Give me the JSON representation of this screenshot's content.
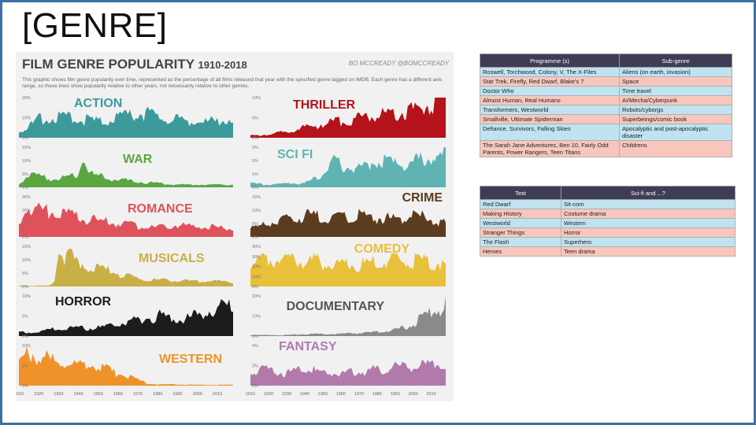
{
  "slide": {
    "title": "[GENRE]"
  },
  "infographic": {
    "title": "FILM GENRE POPULARITY",
    "years": "1910-2018",
    "credit": "BO MCCREADY  @BOMCCREADY",
    "subtitle": "This graphic shows film genre popularity over time, represented as the percentage of all films released that year with the specified genre tagged on IMDB. Each genre has a different axis range, so these lines show popularity relative to other years, not necessarily relative to other genres.",
    "x_ticks_left": [
      "1910",
      "1920",
      "1930",
      "1940",
      "1950",
      "1960",
      "1970",
      "1980",
      "1990",
      "2000",
      "2010"
    ],
    "x_ticks_right": [
      "1910",
      "1920",
      "1930",
      "1940",
      "1950",
      "1960",
      "1970",
      "1980",
      "1990",
      "2000",
      "2010"
    ]
  },
  "chart_data": [
    {
      "type": "area",
      "title": "ACTION",
      "color": "#3d9a9a",
      "yticks": [
        "20%",
        "10%",
        "0%"
      ],
      "ylim": [
        0,
        20
      ],
      "x": [
        1910,
        1920,
        1930,
        1940,
        1950,
        1960,
        1970,
        1980,
        1990,
        2000,
        2010,
        2018
      ],
      "values": [
        3,
        9,
        11,
        9,
        8,
        10,
        12,
        11,
        9,
        8,
        8,
        10
      ]
    },
    {
      "type": "area",
      "title": "THRILLER",
      "color": "#b5121b",
      "yticks": [
        "10%",
        "5%",
        "0%"
      ],
      "ylim": [
        0,
        10
      ],
      "x": [
        1910,
        1920,
        1930,
        1940,
        1950,
        1960,
        1970,
        1980,
        1990,
        2000,
        2010,
        2018
      ],
      "values": [
        0.5,
        0.8,
        1.5,
        2.5,
        3.5,
        4,
        5,
        5.5,
        6,
        7,
        8.5,
        10
      ]
    },
    {
      "type": "area",
      "title": "WAR",
      "color": "#5aa741",
      "yticks": [
        "15%",
        "10%",
        "5%",
        "0%"
      ],
      "ylim": [
        0,
        15
      ],
      "x": [
        1910,
        1915,
        1920,
        1930,
        1940,
        1943,
        1946,
        1950,
        1960,
        1970,
        1980,
        1990,
        2000,
        2010,
        2018
      ],
      "values": [
        1,
        5,
        4,
        3,
        5,
        13,
        5,
        4,
        3,
        2,
        1.5,
        1,
        1,
        1,
        1
      ]
    },
    {
      "type": "area",
      "title": "SCI FI",
      "color": "#5fb3b3",
      "yticks": [
        "3%",
        "2%",
        "1%",
        "0%"
      ],
      "ylim": [
        0,
        3
      ],
      "x": [
        1910,
        1920,
        1930,
        1940,
        1950,
        1955,
        1960,
        1970,
        1980,
        1990,
        2000,
        2010,
        2018
      ],
      "values": [
        0.3,
        0.2,
        0.3,
        0.3,
        1,
        2,
        1.6,
        1.5,
        2,
        1.8,
        1.9,
        2.2,
        2.4
      ]
    },
    {
      "type": "area",
      "title": "ROMANCE",
      "color": "#e0525b",
      "yticks": [
        "30%",
        "20%",
        "10%",
        "0%"
      ],
      "ylim": [
        0,
        30
      ],
      "x": [
        1910,
        1915,
        1920,
        1930,
        1940,
        1950,
        1960,
        1970,
        1980,
        1990,
        2000,
        2010,
        2018
      ],
      "values": [
        12,
        22,
        20,
        18,
        14,
        12,
        10,
        8,
        7,
        9,
        8,
        7,
        6
      ]
    },
    {
      "type": "area",
      "title": "CRIME",
      "color": "#5b3c1e",
      "yticks": [
        "15%",
        "10%",
        "5%",
        "0%"
      ],
      "ylim": [
        0,
        15
      ],
      "x": [
        1910,
        1920,
        1930,
        1940,
        1950,
        1960,
        1970,
        1980,
        1990,
        2000,
        2010,
        2018
      ],
      "values": [
        3,
        5,
        7,
        8,
        8,
        7,
        8,
        7,
        7,
        8,
        7,
        5
      ]
    },
    {
      "type": "area",
      "title": "MUSICALS",
      "color": "#c8b046",
      "yticks": [
        "15%",
        "10%",
        "5%",
        "0%"
      ],
      "ylim": [
        0,
        15
      ],
      "x": [
        1910,
        1925,
        1928,
        1930,
        1940,
        1950,
        1960,
        1970,
        1980,
        1990,
        2000,
        2010,
        2018
      ],
      "values": [
        0.3,
        0.3,
        2,
        13,
        9,
        7,
        5,
        3,
        2.5,
        2,
        2,
        2,
        1.5
      ]
    },
    {
      "type": "area",
      "title": "COMEDY",
      "color": "#e8c03a",
      "yticks": [
        "40%",
        "30%",
        "20%",
        "10%",
        "0%"
      ],
      "ylim": [
        0,
        40
      ],
      "x": [
        1910,
        1920,
        1930,
        1940,
        1950,
        1960,
        1970,
        1980,
        1990,
        2000,
        2010,
        2018
      ],
      "values": [
        20,
        28,
        25,
        26,
        24,
        22,
        21,
        24,
        26,
        25,
        24,
        22
      ]
    },
    {
      "type": "area",
      "title": "HORROR",
      "color": "#1c1c1c",
      "yticks": [
        "10%",
        "5%",
        "0%"
      ],
      "ylim": [
        0,
        10
      ],
      "x": [
        1910,
        1920,
        1930,
        1940,
        1950,
        1960,
        1970,
        1980,
        1990,
        2000,
        2010,
        2018
      ],
      "values": [
        1,
        1,
        2,
        2,
        2,
        3,
        4,
        5,
        4,
        5,
        7,
        8
      ]
    },
    {
      "type": "area",
      "title": "DOCUMENTARY",
      "color": "#8a8a8a",
      "yticks": [
        "20%",
        "10%",
        "0%"
      ],
      "ylim": [
        0,
        20
      ],
      "x": [
        1910,
        1920,
        1930,
        1940,
        1950,
        1960,
        1970,
        1980,
        1990,
        2000,
        2010,
        2018
      ],
      "values": [
        0.5,
        0.5,
        0.5,
        1,
        1,
        1,
        1.5,
        2,
        3,
        6,
        12,
        16
      ]
    },
    {
      "type": "area",
      "title": "WESTERN",
      "color": "#f0922a",
      "yticks": [
        "10%",
        "5%",
        "0%"
      ],
      "ylim": [
        0,
        10
      ],
      "x": [
        1910,
        1915,
        1920,
        1930,
        1940,
        1950,
        1960,
        1970,
        1975,
        1980,
        1990,
        2000,
        2010,
        2018
      ],
      "values": [
        6,
        9,
        7,
        6,
        5,
        5,
        3,
        1.5,
        0.5,
        0.3,
        0.3,
        0.2,
        0.2,
        0.2
      ]
    },
    {
      "type": "area",
      "title": "FANTASY",
      "color": "#b27aab",
      "yticks": [
        "4%",
        "2%",
        "0%"
      ],
      "ylim": [
        0,
        4
      ],
      "x": [
        1910,
        1920,
        1930,
        1940,
        1950,
        1960,
        1970,
        1980,
        1990,
        2000,
        2010,
        2018
      ],
      "values": [
        1.5,
        1.6,
        1.2,
        1.6,
        1.4,
        1.2,
        1.4,
        1.6,
        1.8,
        2,
        2,
        2.2
      ]
    }
  ],
  "table1": {
    "headers": [
      "Programme (s)",
      "Sub-genre"
    ],
    "rows": [
      [
        "Roswell, Torchwood, Colony, V, The X-Files",
        "Aliens (on earth, invasion)"
      ],
      [
        "Star Trek, Firefly, Red Dwarf, Blake's 7",
        "Space"
      ],
      [
        "Doctor Who",
        "Time travel"
      ],
      [
        "Almost Human, Real Humans",
        "AI/Mecha/Cyberpunk"
      ],
      [
        "Transformers, Westworld",
        "Robots/cyborgs"
      ],
      [
        "Smallville, Ultimate Spiderman",
        "Superbeings/comic book"
      ],
      [
        "Defiance, Survivors, Falling Skies",
        "Apocalyptic and post-apocalyptic disaster"
      ],
      [
        "The Sarah Jane Adventures, Ben 10, Fairly Odd Parents, Power Rangers, Teen Titans",
        "Childrens"
      ]
    ]
  },
  "table2": {
    "headers": [
      "Text",
      "Sci-fi and ...?"
    ],
    "rows": [
      [
        "Red Dwarf",
        "Sit-com"
      ],
      [
        "Making History",
        "Costume drama"
      ],
      [
        "Westworld",
        "Western"
      ],
      [
        "Stranger Things",
        "Horror"
      ],
      [
        "The Flash",
        "Superhero"
      ],
      [
        "Heroes",
        "Teen drama"
      ]
    ]
  }
}
